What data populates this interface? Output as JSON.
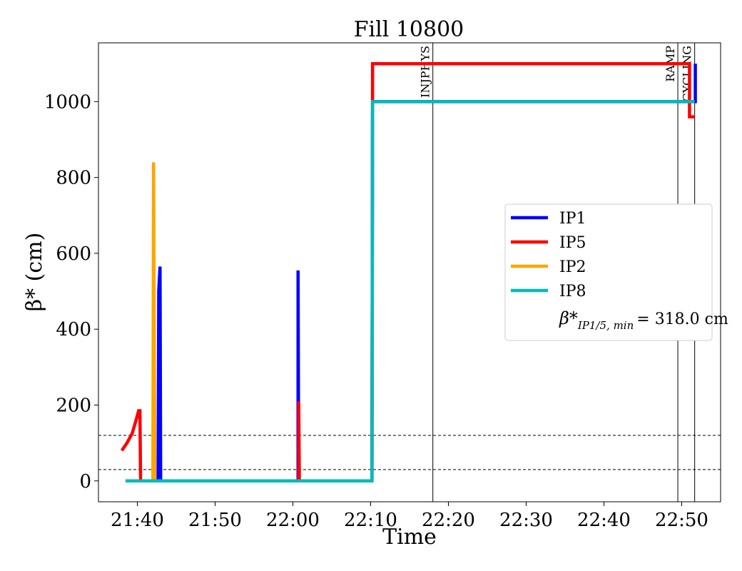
{
  "chart_data": {
    "type": "line",
    "title": "Fill 10800",
    "xlabel": "Time",
    "ylabel": "β* (cm)",
    "x_ticks": [
      "21:40",
      "21:50",
      "22:00",
      "22:10",
      "22:20",
      "22:30",
      "22:40",
      "22:50"
    ],
    "xlim": [
      "21:35:00",
      "22:55:00"
    ],
    "y_ticks": [
      0,
      200,
      400,
      600,
      800,
      1000
    ],
    "ylim": [
      -55,
      1155
    ],
    "grid": false,
    "legend_placement": "center-right",
    "legend_note": {
      "symbol": "β*",
      "subscript": "IP1/5, min",
      "value": "= 318.0 cm"
    },
    "reference_lines_y": [
      30,
      120
    ],
    "events": [
      {
        "label": "INJPHYS",
        "time": "22:18:00"
      },
      {
        "label": "RAMP",
        "time": "22:49:30"
      },
      {
        "label": "CYCLING",
        "time": "22:51:40"
      }
    ],
    "series": [
      {
        "name": "IP1",
        "color": "#0000ff",
        "points": [
          [
            "21:38:30",
            0
          ],
          [
            "21:42:40",
            0
          ],
          [
            "21:42:45",
            500
          ],
          [
            "21:42:55",
            565
          ],
          [
            "21:43:00",
            0
          ],
          [
            "22:00:40",
            0
          ],
          [
            "22:00:40",
            555
          ],
          [
            "22:00:45",
            0
          ],
          [
            "22:10:10",
            0
          ],
          [
            "22:10:15",
            1000
          ],
          [
            "22:51:45",
            1000
          ],
          [
            "22:51:45",
            1100
          ]
        ]
      },
      {
        "name": "IP5",
        "color": "#ff0000",
        "points": [
          [
            "21:38:00",
            80
          ],
          [
            "21:38:40",
            100
          ],
          [
            "21:39:20",
            125
          ],
          [
            "21:39:50",
            160
          ],
          [
            "21:40:10",
            185
          ],
          [
            "21:40:20",
            185
          ],
          [
            "21:40:25",
            0
          ],
          [
            "22:00:45",
            0
          ],
          [
            "22:00:45",
            210
          ],
          [
            "22:00:50",
            0
          ],
          [
            "22:10:10",
            0
          ],
          [
            "22:10:15",
            1100
          ],
          [
            "22:51:00",
            1100
          ],
          [
            "22:51:00",
            960
          ],
          [
            "22:51:40",
            960
          ]
        ]
      },
      {
        "name": "IP2",
        "color": "#ffa500",
        "points": [
          [
            "21:42:00",
            0
          ],
          [
            "21:42:05",
            840
          ],
          [
            "21:42:15",
            0
          ]
        ]
      },
      {
        "name": "IP8",
        "color": "#00bbbb",
        "points": [
          [
            "21:38:30",
            0
          ],
          [
            "22:10:10",
            0
          ],
          [
            "22:10:15",
            1000
          ],
          [
            "22:51:40",
            1000
          ]
        ]
      }
    ]
  }
}
